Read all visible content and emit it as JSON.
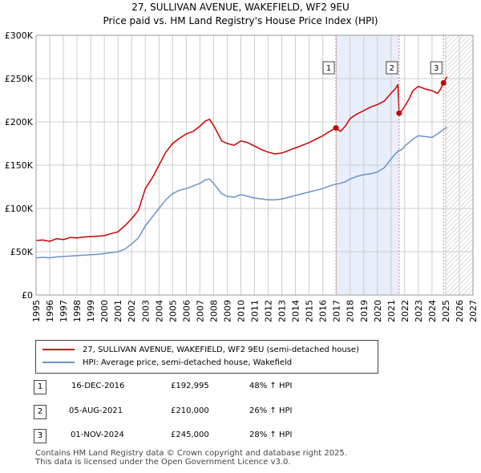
{
  "title": "27, SULLIVAN AVENUE, WAKEFIELD, WF2 9EU",
  "subtitle": "Price paid vs. HM Land Registry's House Price Index (HPI)",
  "colors": {
    "property": "#cc0000",
    "hpi": "#6a93c6",
    "shade": "#e8eefa",
    "grid": "#cccccc",
    "marker_line": "#e87b7b"
  },
  "chart_data": {
    "type": "line",
    "title": "27, SULLIVAN AVENUE, WAKEFIELD, WF2 9EU",
    "subtitle": "Price paid vs. HM Land Registry's House Price Index (HPI)",
    "xlim": [
      1995,
      2027
    ],
    "ylim": [
      0,
      300000
    ],
    "grid": true,
    "y_ticks": [
      {
        "value": 0,
        "label": "£0"
      },
      {
        "value": 50000,
        "label": "£50K"
      },
      {
        "value": 100000,
        "label": "£100K"
      },
      {
        "value": 150000,
        "label": "£150K"
      },
      {
        "value": 200000,
        "label": "£200K"
      },
      {
        "value": 250000,
        "label": "£250K"
      },
      {
        "value": 300000,
        "label": "£300K"
      }
    ],
    "x_ticks": [
      "1995",
      "1996",
      "1997",
      "1998",
      "1999",
      "2000",
      "2001",
      "2002",
      "2003",
      "2004",
      "2005",
      "2006",
      "2007",
      "2008",
      "2009",
      "2010",
      "2011",
      "2012",
      "2013",
      "2014",
      "2015",
      "2016",
      "2017",
      "2018",
      "2019",
      "2020",
      "2021",
      "2022",
      "2023",
      "2024",
      "2025",
      "2026",
      "2027"
    ],
    "shaded_region": [
      2016.96,
      2021.59
    ],
    "hatched_region": [
      2025.0,
      2027.0
    ],
    "series": [
      {
        "name": "27, SULLIVAN AVENUE, WAKEFIELD, WF2 9EU (semi-detached house)",
        "color": "#cc0000",
        "x": [
          1995,
          1995.5,
          1996,
          1996.5,
          1997,
          1997.5,
          1998,
          1998.5,
          1999,
          1999.5,
          2000,
          2000.5,
          2001,
          2001.5,
          2002,
          2002.5,
          2003,
          2003.5,
          2004,
          2004.5,
          2005,
          2005.5,
          2006,
          2006.5,
          2007,
          2007.4,
          2007.7,
          2008,
          2008.3,
          2008.6,
          2009,
          2009.5,
          2010,
          2010.5,
          2011,
          2011.5,
          2012,
          2012.5,
          2013,
          2013.5,
          2014,
          2014.5,
          2015,
          2015.5,
          2016,
          2016.5,
          2016.96,
          2017.3,
          2017.7,
          2018,
          2018.5,
          2019,
          2019.5,
          2020,
          2020.5,
          2021,
          2021.3,
          2021.5,
          2021.59,
          2021.8,
          2022,
          2022.3,
          2022.6,
          2023,
          2023.5,
          2024,
          2024.4,
          2024.6,
          2024.84,
          2025.1
        ],
        "y": [
          63000,
          63500,
          62000,
          65000,
          64000,
          66500,
          66000,
          67000,
          67500,
          68000,
          68500,
          71000,
          73000,
          80000,
          88000,
          98000,
          123000,
          135000,
          150000,
          165000,
          175000,
          181000,
          186000,
          189000,
          195000,
          201000,
          203000,
          196000,
          187000,
          178000,
          175000,
          173000,
          178000,
          176000,
          172000,
          168000,
          165000,
          163000,
          164000,
          167000,
          170000,
          173000,
          176000,
          180000,
          184000,
          189000,
          192995,
          189000,
          196000,
          204000,
          209000,
          213000,
          217000,
          220000,
          224000,
          233000,
          238000,
          243000,
          210000,
          213000,
          218000,
          226000,
          236000,
          241000,
          238000,
          236000,
          233000,
          237000,
          245000,
          252000
        ]
      },
      {
        "name": "HPI: Average price, semi-detached house, Wakefield",
        "color": "#6a93c6",
        "x": [
          1995,
          1995.5,
          1996,
          1996.5,
          1997,
          1997.5,
          1998,
          1998.5,
          1999,
          1999.5,
          2000,
          2000.5,
          2001,
          2001.5,
          2002,
          2002.5,
          2003,
          2003.5,
          2004,
          2004.5,
          2005,
          2005.5,
          2006,
          2006.5,
          2007,
          2007.4,
          2007.7,
          2008,
          2008.3,
          2008.6,
          2009,
          2009.5,
          2010,
          2010.5,
          2011,
          2011.5,
          2012,
          2012.5,
          2013,
          2013.5,
          2014,
          2014.5,
          2015,
          2015.5,
          2016,
          2016.5,
          2016.96,
          2017.3,
          2017.7,
          2018,
          2018.5,
          2019,
          2019.5,
          2020,
          2020.5,
          2021,
          2021.3,
          2021.59,
          2021.8,
          2022,
          2022.3,
          2022.6,
          2023,
          2023.5,
          2024,
          2024.4,
          2024.84,
          2025.1
        ],
        "y": [
          43000,
          43500,
          43000,
          44000,
          44500,
          45000,
          45500,
          46000,
          46500,
          47000,
          48000,
          49000,
          50000,
          53000,
          59000,
          66000,
          80000,
          90000,
          100000,
          110000,
          117000,
          121000,
          123000,
          126000,
          129000,
          133000,
          134000,
          129000,
          123000,
          117000,
          114000,
          113000,
          116000,
          114000,
          112000,
          111000,
          110000,
          110000,
          111000,
          113000,
          115000,
          117000,
          119000,
          121000,
          123000,
          126000,
          128000,
          129000,
          131000,
          134000,
          137000,
          139000,
          140000,
          142000,
          147000,
          157000,
          163000,
          167000,
          168000,
          172000,
          176000,
          180000,
          184000,
          183000,
          182000,
          186000,
          191000,
          194000
        ]
      }
    ],
    "markers": [
      {
        "label": "1",
        "x": 2016.96,
        "y": 192995
      },
      {
        "label": "2",
        "x": 2021.59,
        "y": 210000
      },
      {
        "label": "3",
        "x": 2024.84,
        "y": 245000
      }
    ]
  },
  "legend": {
    "property_label": "27, SULLIVAN AVENUE, WAKEFIELD, WF2 9EU (semi-detached house)",
    "hpi_label": "HPI: Average price, semi-detached house, Wakefield"
  },
  "transactions": [
    {
      "num": "1",
      "date": "16-DEC-2016",
      "price": "£192,995",
      "hpi": "48% ↑ HPI"
    },
    {
      "num": "2",
      "date": "05-AUG-2021",
      "price": "£210,000",
      "hpi": "26% ↑ HPI"
    },
    {
      "num": "3",
      "date": "01-NOV-2024",
      "price": "£245,000",
      "hpi": "28% ↑ HPI"
    }
  ],
  "footer": {
    "line1": "Contains HM Land Registry data © Crown copyright and database right 2025.",
    "line2": "This data is licensed under the Open Government Licence v3.0."
  }
}
